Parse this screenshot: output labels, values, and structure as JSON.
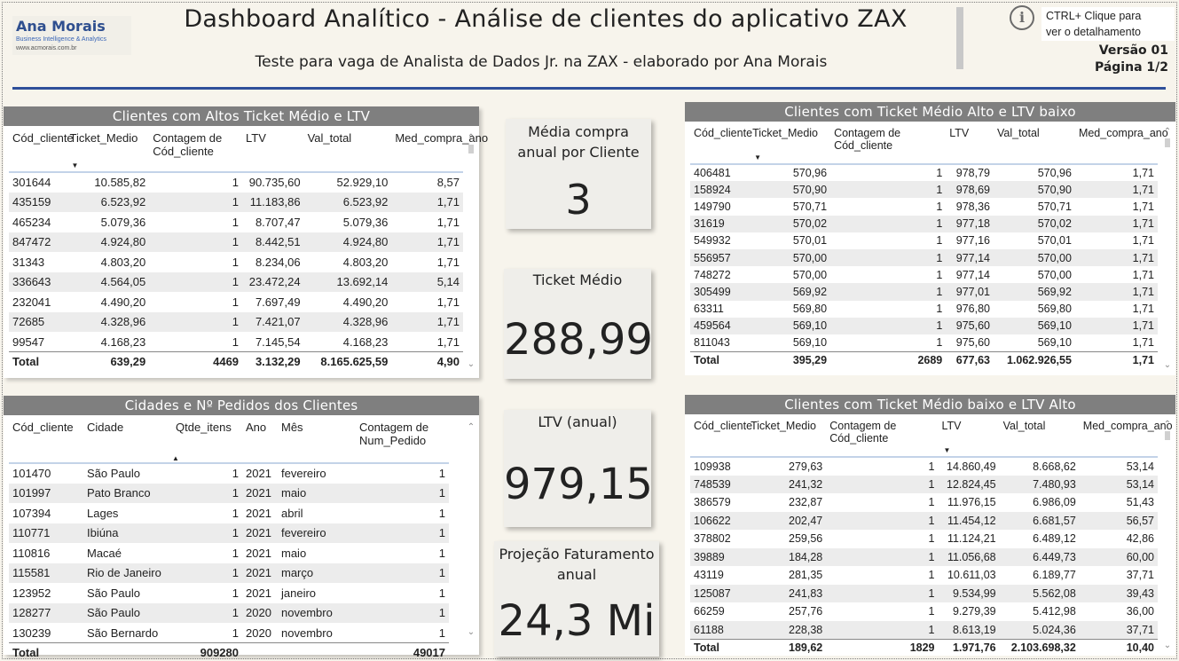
{
  "header": {
    "logo_name": "Ana Morais",
    "logo_sub": "Business Intelligence & Analytics",
    "logo_url": "www.acmorais.com.br",
    "title": "Dashboard Analítico - Análise de clientes do aplicativo ZAX",
    "subtitle": "Teste para vaga de Analista de Dados Jr. na ZAX - elaborado por Ana Morais",
    "info_icon": "i",
    "ctrl_line1": "CTRL+ Clique para",
    "ctrl_line2": "ver o detalhamento",
    "version": "Versão 01",
    "page": "Página 1/2"
  },
  "colors": {
    "accent": "#2f4f9a",
    "panel_title_bg": "#7f7f7f",
    "background": "#f7f4ec"
  },
  "top_left": {
    "title": "Clientes com Altos Ticket Médio e LTV",
    "headers": [
      "Cód_cliente",
      "Ticket_Medio",
      "Contagem de Cód_cliente",
      "LTV",
      "Val_total",
      "Med_compra_ano"
    ],
    "rows": [
      [
        "301644",
        "10.585,82",
        "1",
        "90.735,60",
        "52.929,10",
        "8,57"
      ],
      [
        "435159",
        "6.523,92",
        "1",
        "11.183,86",
        "6.523,92",
        "1,71"
      ],
      [
        "465234",
        "5.079,36",
        "1",
        "8.707,47",
        "5.079,36",
        "1,71"
      ],
      [
        "847472",
        "4.924,80",
        "1",
        "8.442,51",
        "4.924,80",
        "1,71"
      ],
      [
        "31343",
        "4.803,20",
        "1",
        "8.234,06",
        "4.803,20",
        "1,71"
      ],
      [
        "336643",
        "4.564,05",
        "1",
        "23.472,24",
        "13.692,14",
        "5,14"
      ],
      [
        "232041",
        "4.490,20",
        "1",
        "7.697,49",
        "4.490,20",
        "1,71"
      ],
      [
        "72685",
        "4.328,96",
        "1",
        "7.421,07",
        "4.328,96",
        "1,71"
      ],
      [
        "99547",
        "4.168,23",
        "1",
        "7.145,54",
        "4.168,23",
        "1,71"
      ]
    ],
    "total": [
      "Total",
      "639,29",
      "4469",
      "3.132,29",
      "8.165.625,59",
      "4,90"
    ]
  },
  "bottom_left": {
    "title": "Cidades e Nº Pedidos dos Clientes",
    "headers": [
      "Cód_cliente",
      "Cidade",
      "Qtde_itens",
      "Ano",
      "Mês",
      "Contagem de Num_Pedido"
    ],
    "rows": [
      [
        "101470",
        "São Paulo",
        "1",
        "2021",
        "fevereiro",
        "1"
      ],
      [
        "101997",
        "Pato Branco",
        "1",
        "2021",
        "maio",
        "1"
      ],
      [
        "107394",
        "Lages",
        "1",
        "2021",
        "abril",
        "1"
      ],
      [
        "110771",
        "Ibiúna",
        "1",
        "2021",
        "fevereiro",
        "1"
      ],
      [
        "110816",
        "Macaé",
        "1",
        "2021",
        "maio",
        "1"
      ],
      [
        "115581",
        "Rio de Janeiro",
        "1",
        "2021",
        "março",
        "1"
      ],
      [
        "123952",
        "São Paulo",
        "1",
        "2021",
        "janeiro",
        "1"
      ],
      [
        "128277",
        "São Paulo",
        "1",
        "2020",
        "novembro",
        "1"
      ],
      [
        "130239",
        "São Bernardo",
        "1",
        "2020",
        "novembro",
        "1"
      ]
    ],
    "total": [
      "Total",
      "",
      "909280",
      "",
      "",
      "49017"
    ]
  },
  "top_right": {
    "title": "Clientes com Ticket Médio Alto e LTV baixo",
    "headers": [
      "Cód_cliente",
      "Ticket_Medio",
      "Contagem de Cód_cliente",
      "LTV",
      "Val_total",
      "Med_compra_ano"
    ],
    "rows": [
      [
        "406481",
        "570,96",
        "1",
        "978,79",
        "570,96",
        "1,71"
      ],
      [
        "158924",
        "570,90",
        "1",
        "978,69",
        "570,90",
        "1,71"
      ],
      [
        "149790",
        "570,71",
        "1",
        "978,36",
        "570,71",
        "1,71"
      ],
      [
        "31619",
        "570,02",
        "1",
        "977,18",
        "570,02",
        "1,71"
      ],
      [
        "549932",
        "570,01",
        "1",
        "977,16",
        "570,01",
        "1,71"
      ],
      [
        "556957",
        "570,00",
        "1",
        "977,14",
        "570,00",
        "1,71"
      ],
      [
        "748272",
        "570,00",
        "1",
        "977,14",
        "570,00",
        "1,71"
      ],
      [
        "305499",
        "569,92",
        "1",
        "977,01",
        "569,92",
        "1,71"
      ],
      [
        "63311",
        "569,80",
        "1",
        "976,80",
        "569,80",
        "1,71"
      ],
      [
        "459564",
        "569,10",
        "1",
        "975,60",
        "569,10",
        "1,71"
      ],
      [
        "811043",
        "569,10",
        "1",
        "975,60",
        "569,10",
        "1,71"
      ]
    ],
    "total": [
      "Total",
      "395,29",
      "2689",
      "677,63",
      "1.062.926,55",
      "1,71"
    ]
  },
  "bottom_right": {
    "title": "Clientes com Ticket Médio baixo e LTV Alto",
    "headers": [
      "Cód_cliente",
      "Ticket_Medio",
      "Contagem de Cód_cliente",
      "LTV",
      "Val_total",
      "Med_compra_ano"
    ],
    "rows": [
      [
        "109938",
        "279,63",
        "1",
        "14.860,49",
        "8.668,62",
        "53,14"
      ],
      [
        "748539",
        "241,32",
        "1",
        "12.824,45",
        "7.480,93",
        "53,14"
      ],
      [
        "386579",
        "232,87",
        "1",
        "11.976,15",
        "6.986,09",
        "51,43"
      ],
      [
        "106622",
        "202,47",
        "1",
        "11.454,12",
        "6.681,57",
        "56,57"
      ],
      [
        "378802",
        "259,56",
        "1",
        "11.124,21",
        "6.489,12",
        "42,86"
      ],
      [
        "39889",
        "184,28",
        "1",
        "11.056,68",
        "6.449,73",
        "60,00"
      ],
      [
        "43119",
        "281,35",
        "1",
        "10.611,03",
        "6.189,77",
        "37,71"
      ],
      [
        "125087",
        "241,83",
        "1",
        "9.534,99",
        "5.562,08",
        "39,43"
      ],
      [
        "66259",
        "257,76",
        "1",
        "9.279,39",
        "5.412,98",
        "36,00"
      ],
      [
        "61188",
        "228,38",
        "1",
        "8.613,19",
        "5.024,36",
        "37,71"
      ]
    ],
    "total": [
      "Total",
      "189,62",
      "1829",
      "1.971,76",
      "2.103.698,32",
      "10,40"
    ]
  },
  "kpis": {
    "compra_label": "Média compra anual por Cliente",
    "compra_value": "3",
    "ticket_label": "Ticket Médio",
    "ticket_value": "288,99",
    "ltv_label": "LTV (anual)",
    "ltv_value": "979,15",
    "proj_label": "Projeção Faturamento anual",
    "proj_value": "24,3 Mi"
  }
}
